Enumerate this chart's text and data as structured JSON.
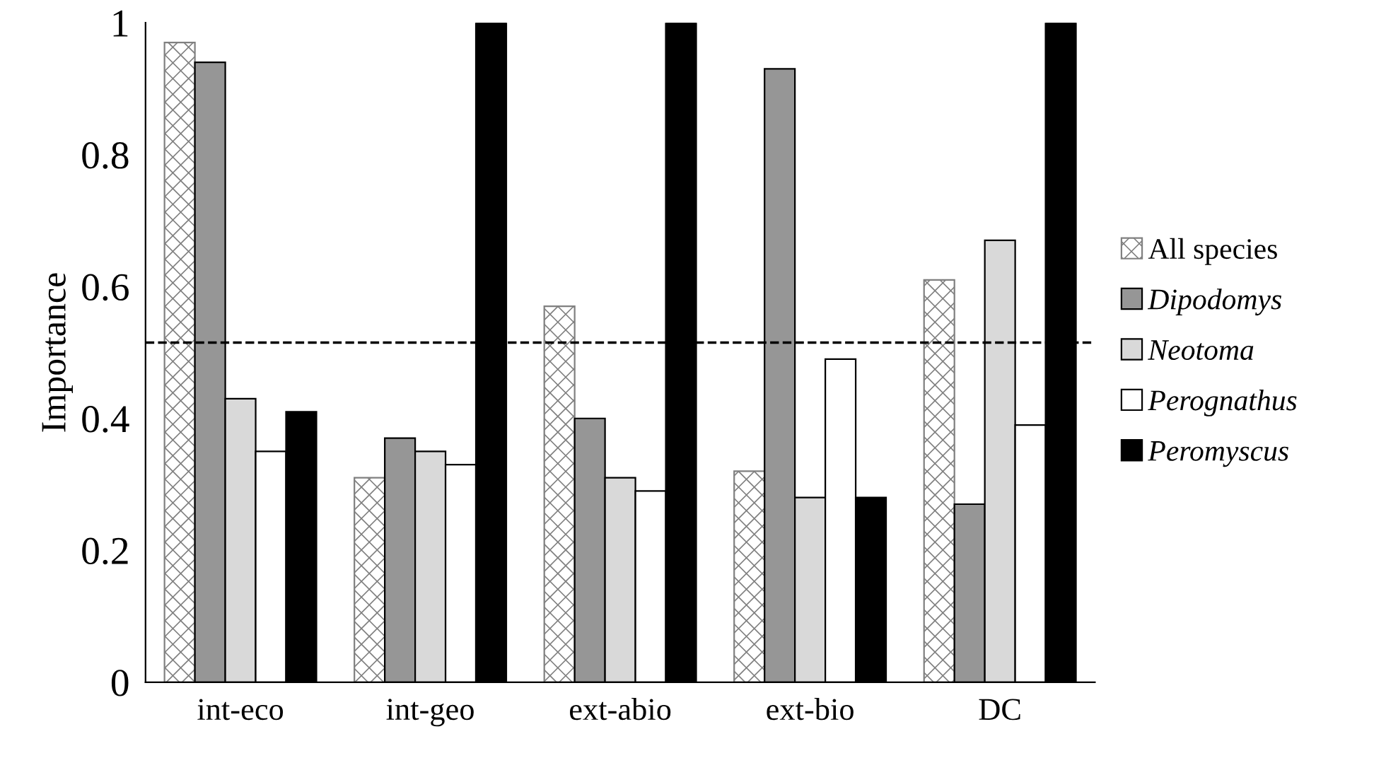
{
  "chart_data": {
    "type": "bar",
    "ylabel": "Importance",
    "categories": [
      "int-eco",
      "int-geo",
      "ext-abio",
      "ext-bio",
      "DC"
    ],
    "series": [
      {
        "name": "All species",
        "color": "#808080",
        "values": [
          0.97,
          0.31,
          0.57,
          0.32,
          0.61
        ]
      },
      {
        "name": "Dipodomys",
        "color": "#969696",
        "values": [
          0.94,
          0.37,
          0.4,
          0.93,
          0.27
        ]
      },
      {
        "name": "Neotoma",
        "color": "#d9d9d9",
        "values": [
          0.43,
          0.35,
          0.31,
          0.28,
          0.67
        ]
      },
      {
        "name": "Perognathus",
        "color": "#ffffff",
        "values": [
          0.35,
          0.33,
          0.29,
          0.49,
          0.39
        ]
      },
      {
        "name": "Peromyscus",
        "color": "#000000",
        "values": [
          0.41,
          1.0,
          1.0,
          0.28,
          1.0
        ]
      }
    ],
    "ylim": [
      0,
      1
    ],
    "yticks": [
      0,
      0.2,
      0.4,
      0.6,
      0.8,
      1
    ],
    "ref_lines": [
      {
        "axis": "y",
        "value": 0.515,
        "line_style": "dashed",
        "color": "#000000"
      }
    ],
    "legend": "right",
    "grid": false
  }
}
